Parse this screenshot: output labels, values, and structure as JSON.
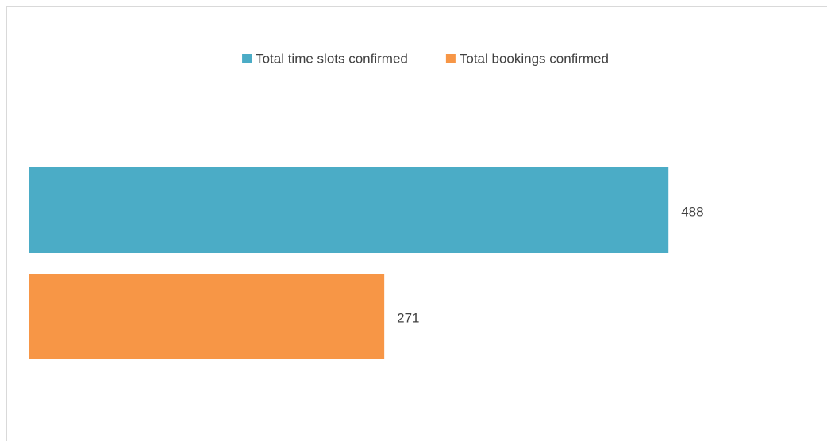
{
  "chart_data": {
    "type": "hbar",
    "categories": [
      null
    ],
    "series": [
      {
        "name": "Total time slots confirmed",
        "color": "#4bacc6",
        "values": [
          488
        ]
      },
      {
        "name": "Total bookings confirmed",
        "color": "#f79646",
        "values": [
          271
        ]
      }
    ],
    "xlim": [
      0,
      600
    ],
    "legend": "top"
  }
}
